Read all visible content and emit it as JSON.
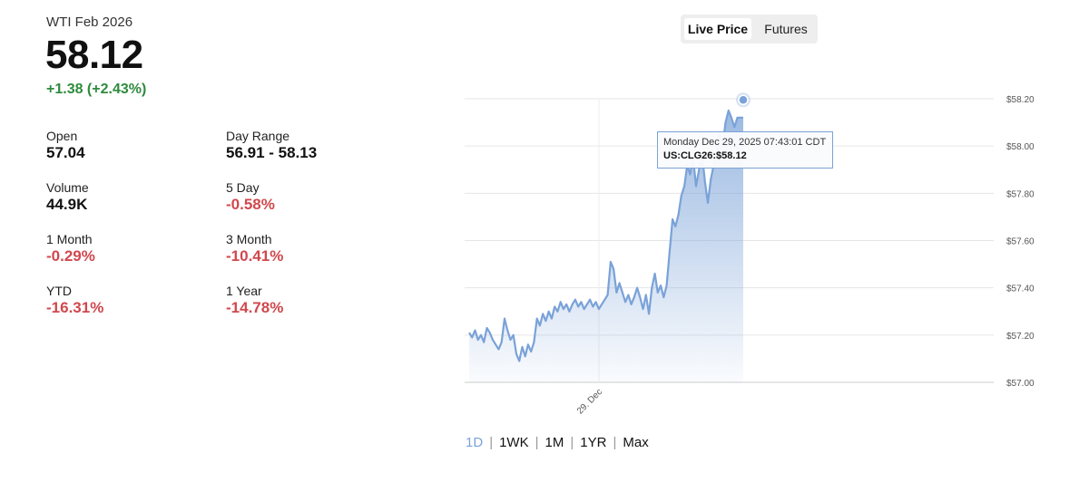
{
  "quote": {
    "title": "WTI Feb 2026",
    "price": "58.12",
    "change": "+1.38 (+2.43%)",
    "change_color": "#2e8b3e"
  },
  "stats": [
    {
      "label": "Open",
      "value": "57.04",
      "negative": false
    },
    {
      "label": "Day Range",
      "value": "56.91 - 58.13",
      "negative": false
    },
    {
      "label": "Volume",
      "value": "44.9K",
      "negative": false
    },
    {
      "label": "5 Day",
      "value": "-0.58%",
      "negative": true
    },
    {
      "label": "1 Month",
      "value": "-0.29%",
      "negative": true
    },
    {
      "label": "3 Month",
      "value": "-10.41%",
      "negative": true
    },
    {
      "label": "YTD",
      "value": "-16.31%",
      "negative": true
    },
    {
      "label": "1 Year",
      "value": "-14.78%",
      "negative": true
    }
  ],
  "toggle": {
    "live": "Live Price",
    "futures": "Futures",
    "active": "live"
  },
  "tooltip": {
    "line1": "Monday Dec 29, 2025 07:43:01 CDT",
    "line2": "US:CLG26:$58.12"
  },
  "ranges": {
    "items": [
      "1D",
      "1WK",
      "1M",
      "1YR",
      "Max"
    ],
    "active": "1D",
    "separator": "|"
  },
  "colors": {
    "line": "#7aa2d8",
    "negative": "#d0484d",
    "positive": "#2e8b3e",
    "grid": "#e6e6e6"
  },
  "chart_data": {
    "type": "area",
    "series": [
      {
        "values": [
          57.21,
          57.19,
          57.22,
          57.18,
          57.2,
          57.17,
          57.23,
          57.21,
          57.18,
          57.16,
          57.14,
          57.17,
          57.27,
          57.22,
          57.18,
          57.2,
          57.12,
          57.09,
          57.15,
          57.11,
          57.16,
          57.13,
          57.17,
          57.27,
          57.24,
          57.29,
          57.26,
          57.3,
          57.27,
          57.32,
          57.3,
          57.34,
          57.31,
          57.33,
          57.3,
          57.33,
          57.35,
          57.32,
          57.34,
          57.31,
          57.33,
          57.35,
          57.32,
          57.34,
          57.31,
          57.33,
          57.35,
          57.37,
          57.51,
          57.48,
          57.38,
          57.42,
          57.38,
          57.34,
          57.37,
          57.33,
          57.36,
          57.4,
          57.36,
          57.31,
          57.37,
          57.29,
          57.4,
          57.46,
          57.38,
          57.41,
          57.36,
          57.41,
          57.55,
          57.69,
          57.66,
          57.71,
          57.79,
          57.83,
          57.92,
          57.88,
          57.95,
          57.83,
          57.9,
          57.97,
          57.85,
          57.76,
          57.86,
          57.92,
          57.98,
          58.05,
          58.0,
          58.1,
          58.15,
          58.12,
          58.08,
          58.12,
          58.12,
          58.12
        ]
      }
    ],
    "x_labels": [
      "29. Dec"
    ],
    "y_ticks": [
      "$58.20",
      "$58.00",
      "$57.80",
      "$57.60",
      "$57.40",
      "$57.20",
      "$57.00"
    ],
    "ylim": [
      57.0,
      58.2
    ],
    "y_axis_position": "right",
    "grid": true,
    "last_value": 58.12
  }
}
